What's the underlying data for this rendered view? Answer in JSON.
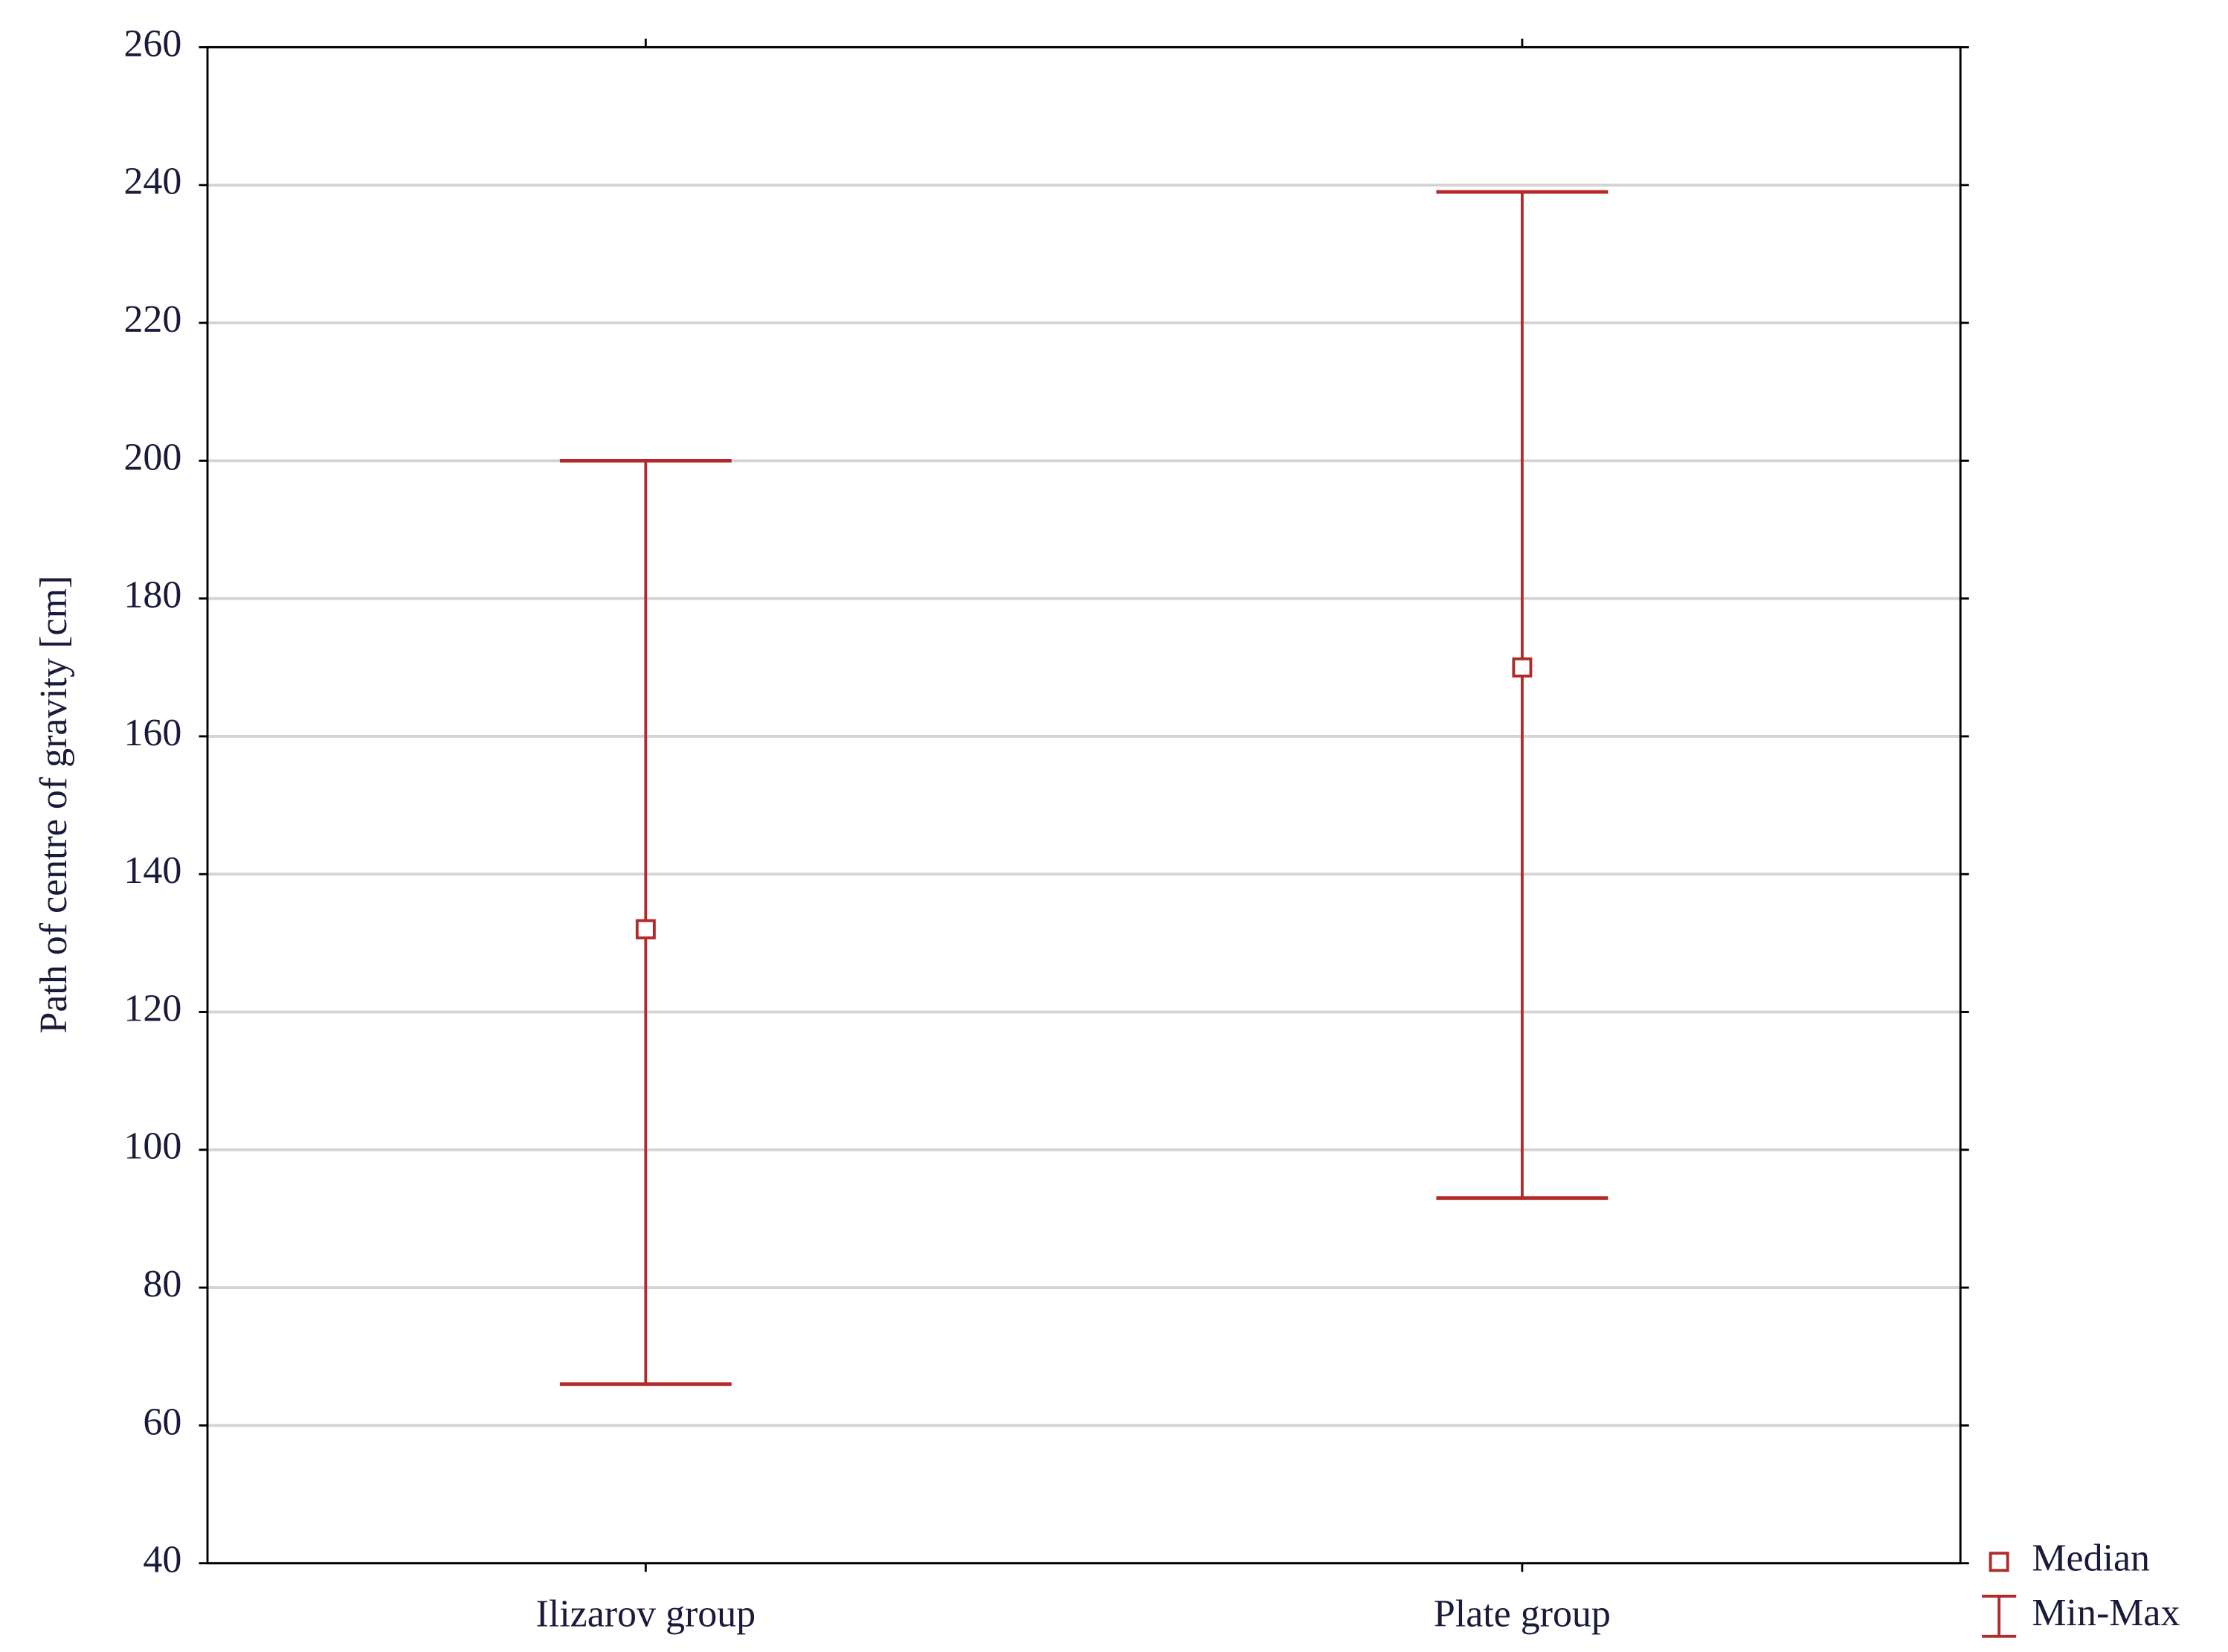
{
  "chart_data": {
    "type": "range",
    "y_label": "Path of centre of gravity [cm]",
    "categories": [
      "Ilizarov group",
      "Plate group"
    ],
    "series": [
      {
        "name": "Median",
        "color": "#b22a2a",
        "values": [
          132,
          170
        ]
      },
      {
        "name": "Min-Max",
        "color": "#b22a2a",
        "low": [
          66,
          93
        ],
        "high": [
          200,
          239
        ]
      }
    ],
    "ylim": [
      40,
      260
    ],
    "yticks": [
      40,
      60,
      80,
      100,
      120,
      140,
      160,
      180,
      200,
      220,
      240,
      260
    ],
    "grid": true,
    "legend": "bottom-right"
  }
}
